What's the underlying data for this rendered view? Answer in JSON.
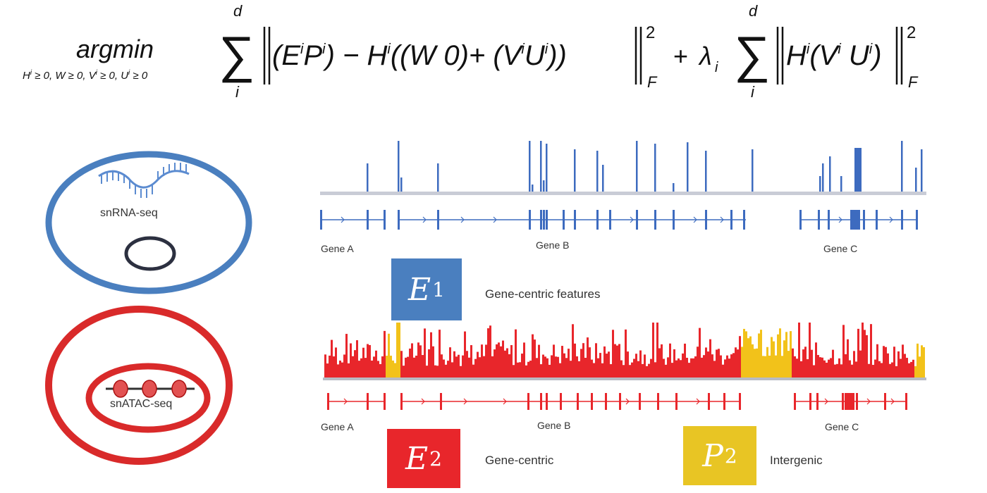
{
  "formula": {
    "argmin": "argmin",
    "constraint": "H^i ≥ 0, W ≥ 0, V^i ≥ 0, U^i ≥ 0",
    "sum_upper": "d",
    "sum_lower": "i",
    "norm_subscript": "F",
    "norm_power": "2",
    "lambda": "λ",
    "lambda_sub": "i"
  },
  "cells": {
    "rna_label": "snRNA-seq",
    "atac_label": "snATAC-seq"
  },
  "genes": {
    "a": "Gene A",
    "b": "Gene B",
    "c": "Gene C"
  },
  "boxes": {
    "e1": {
      "letter": "E",
      "sub": "1",
      "color": "#4a7fbf",
      "desc": "Gene-centric features"
    },
    "e2": {
      "letter": "E",
      "sub": "2",
      "color": "#e8262b",
      "desc": "Gene-centric"
    },
    "p2": {
      "letter": "P",
      "sub": "2",
      "color": "#e8c524",
      "desc": "Intergenic"
    }
  },
  "colors": {
    "blue_track": "#3d6bbf",
    "red_track": "#e8262b",
    "yellow_track": "#f2c21a",
    "cell_blue": "#4a7fbf",
    "cell_red": "#d92a2a"
  }
}
